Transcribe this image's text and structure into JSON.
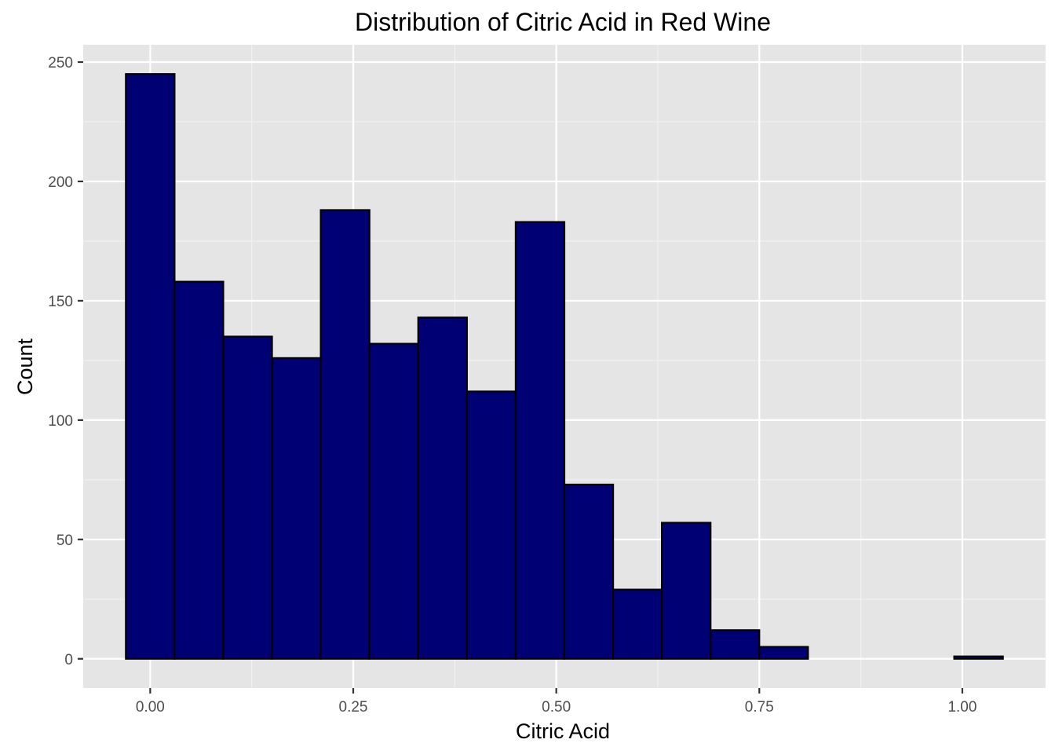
{
  "chart_data": {
    "type": "bar",
    "title": "Distribution of Citric Acid in Red Wine",
    "xlabel": "Citric Acid",
    "ylabel": "Count",
    "bin_width": 0.06,
    "bins": [
      {
        "x0": -0.03,
        "x1": 0.03,
        "count": 245
      },
      {
        "x0": 0.03,
        "x1": 0.09,
        "count": 158
      },
      {
        "x0": 0.09,
        "x1": 0.15,
        "count": 135
      },
      {
        "x0": 0.15,
        "x1": 0.21,
        "count": 126
      },
      {
        "x0": 0.21,
        "x1": 0.27,
        "count": 188
      },
      {
        "x0": 0.27,
        "x1": 0.33,
        "count": 132
      },
      {
        "x0": 0.33,
        "x1": 0.39,
        "count": 143
      },
      {
        "x0": 0.39,
        "x1": 0.45,
        "count": 112
      },
      {
        "x0": 0.45,
        "x1": 0.51,
        "count": 183
      },
      {
        "x0": 0.51,
        "x1": 0.57,
        "count": 73
      },
      {
        "x0": 0.57,
        "x1": 0.63,
        "count": 29
      },
      {
        "x0": 0.63,
        "x1": 0.69,
        "count": 57
      },
      {
        "x0": 0.69,
        "x1": 0.75,
        "count": 12
      },
      {
        "x0": 0.75,
        "x1": 0.81,
        "count": 5
      },
      {
        "x0": 0.81,
        "x1": 0.87,
        "count": 0
      },
      {
        "x0": 0.87,
        "x1": 0.93,
        "count": 0
      },
      {
        "x0": 0.93,
        "x1": 0.99,
        "count": 0
      },
      {
        "x0": 0.99,
        "x1": 1.05,
        "count": 1
      }
    ],
    "xlim": [
      -0.0825,
      1.1025
    ],
    "ylim": [
      -12.25,
      257.25
    ],
    "x_ticks": [
      0.0,
      0.25,
      0.5,
      0.75,
      1.0
    ],
    "x_tick_labels": [
      "0.00",
      "0.25",
      "0.50",
      "0.75",
      "1.00"
    ],
    "x_minor_ticks": [
      0.125,
      0.375,
      0.625,
      0.875
    ],
    "y_ticks": [
      0,
      50,
      100,
      150,
      200,
      250
    ],
    "y_tick_labels": [
      "0",
      "50",
      "100",
      "150",
      "200",
      "250"
    ],
    "y_minor_ticks": [
      25,
      75,
      125,
      175,
      225
    ],
    "grid": true,
    "legend": "none",
    "colors": {
      "bar_fill": "#000075",
      "bar_outline": "#000000",
      "panel_background": "#e5e5e5",
      "gridline": "#ffffff"
    }
  }
}
